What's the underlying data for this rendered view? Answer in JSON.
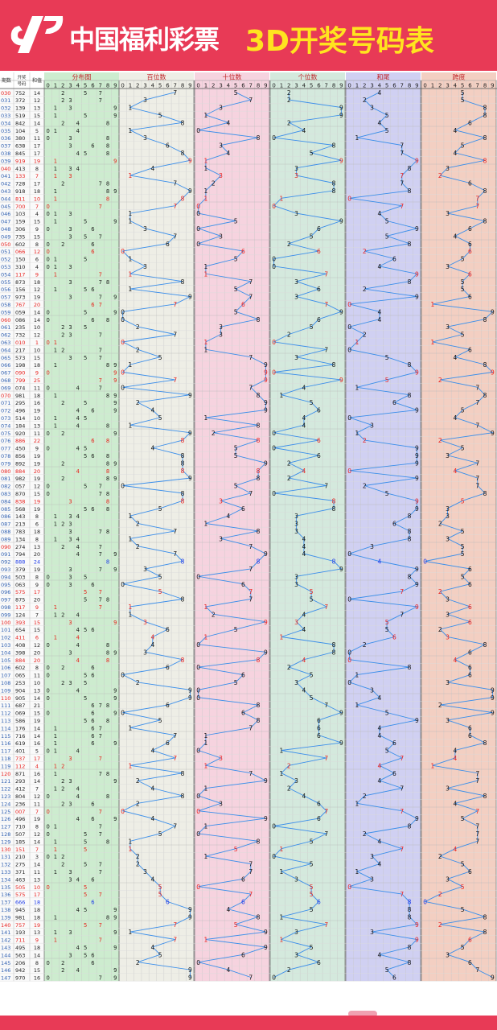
{
  "header": {
    "logo_text": "中国福利彩票",
    "title": "3D开奖号码表",
    "colors": {
      "brand": "#e83a56",
      "title": "#ffe41f"
    }
  },
  "column_headers": {
    "period": "期数",
    "draw": "开奖号码",
    "sum": "和值",
    "distribution": "分布图",
    "hundreds": "百位数",
    "tens": "十位数",
    "units": "个位数",
    "sum_tail": "和尾",
    "span": "跨度",
    "digits": [
      "0",
      "1",
      "2",
      "3",
      "4",
      "5",
      "6",
      "7",
      "8",
      "9"
    ]
  },
  "colors": {
    "distribution_bg": "#cdeccf",
    "hundreds_bg": "#eeeee6",
    "tens_bg": "#f6d3df",
    "units_bg": "#d4e9dd",
    "sum_tail_bg": "#d0d0f2",
    "span_bg": "#f3cfc2",
    "line": "#3a8eea",
    "red_number": "#e8201d",
    "blue_number": "#1d3ae8"
  },
  "chart_data": {
    "type": "table",
    "title": "3D开奖号码表",
    "rows": [
      {
        "period": "030",
        "draw": "752",
        "sum": "14",
        "sum_tail": "4",
        "span": "5"
      },
      {
        "period": "031",
        "draw": "372",
        "sum": "12",
        "sum_tail": "2",
        "span": "5"
      },
      {
        "period": "032",
        "draw": "139",
        "sum": "13",
        "sum_tail": "3",
        "span": "8"
      },
      {
        "period": "033",
        "draw": "519",
        "sum": "15",
        "sum_tail": "5",
        "span": "8"
      },
      {
        "period": "034",
        "draw": "842",
        "sum": "14",
        "sum_tail": "4",
        "span": "6"
      },
      {
        "period": "035",
        "draw": "104",
        "sum": "5",
        "sum_tail": "5",
        "span": "4"
      },
      {
        "period": "036",
        "draw": "380",
        "sum": "11",
        "sum_tail": "1",
        "span": "8"
      },
      {
        "period": "037",
        "draw": "638",
        "sum": "17",
        "sum_tail": "7",
        "span": "5"
      },
      {
        "period": "038",
        "draw": "845",
        "sum": "17",
        "sum_tail": "7",
        "span": "4"
      },
      {
        "period": "039",
        "draw": "919",
        "sum": "19",
        "sum_tail": "9",
        "span": "8"
      },
      {
        "period": "040",
        "draw": "413",
        "sum": "8",
        "sum_tail": "8",
        "span": "3"
      },
      {
        "period": "041",
        "draw": "133",
        "sum": "7",
        "sum_tail": "7",
        "span": "2"
      },
      {
        "period": "042",
        "draw": "728",
        "sum": "17",
        "sum_tail": "7",
        "span": "6"
      },
      {
        "period": "043",
        "draw": "918",
        "sum": "18",
        "sum_tail": "8",
        "span": "8"
      },
      {
        "period": "044",
        "draw": "811",
        "sum": "10",
        "sum_tail": "0",
        "span": "7"
      },
      {
        "period": "045",
        "draw": "700",
        "sum": "7",
        "sum_tail": "7",
        "span": "7"
      },
      {
        "period": "046",
        "draw": "103",
        "sum": "4",
        "sum_tail": "4",
        "span": "3"
      },
      {
        "period": "047",
        "draw": "159",
        "sum": "15",
        "sum_tail": "5",
        "span": "8"
      },
      {
        "period": "048",
        "draw": "306",
        "sum": "9",
        "sum_tail": "9",
        "span": "6"
      },
      {
        "period": "049",
        "draw": "735",
        "sum": "15",
        "sum_tail": "5",
        "span": "4"
      },
      {
        "period": "050",
        "draw": "602",
        "sum": "8",
        "sum_tail": "8",
        "span": "6"
      },
      {
        "period": "051",
        "draw": "066",
        "sum": "12",
        "sum_tail": "2",
        "span": "6"
      },
      {
        "period": "052",
        "draw": "150",
        "sum": "6",
        "sum_tail": "6",
        "span": "5"
      },
      {
        "period": "053",
        "draw": "310",
        "sum": "4",
        "sum_tail": "4",
        "span": "3"
      },
      {
        "period": "054",
        "draw": "117",
        "sum": "9",
        "sum_tail": "9",
        "span": "6"
      },
      {
        "period": "055",
        "draw": "873",
        "sum": "18",
        "sum_tail": "8",
        "span": "5"
      },
      {
        "period": "056",
        "draw": "156",
        "sum": "12",
        "sum_tail": "2",
        "span": "5"
      },
      {
        "period": "057",
        "draw": "973",
        "sum": "19",
        "sum_tail": "9",
        "span": "6"
      },
      {
        "period": "058",
        "draw": "767",
        "sum": "20",
        "sum_tail": "0",
        "span": "1"
      },
      {
        "period": "059",
        "draw": "059",
        "sum": "14",
        "sum_tail": "4",
        "span": "9"
      },
      {
        "period": "060",
        "draw": "086",
        "sum": "14",
        "sum_tail": "4",
        "span": "8"
      },
      {
        "period": "061",
        "draw": "235",
        "sum": "10",
        "sum_tail": "0",
        "span": "3"
      },
      {
        "period": "062",
        "draw": "732",
        "sum": "12",
        "sum_tail": "2",
        "span": "5"
      },
      {
        "period": "063",
        "draw": "010",
        "sum": "1",
        "sum_tail": "1",
        "span": "1"
      },
      {
        "period": "064",
        "draw": "217",
        "sum": "10",
        "sum_tail": "0",
        "span": "6"
      },
      {
        "period": "065",
        "draw": "573",
        "sum": "15",
        "sum_tail": "5",
        "span": "4"
      },
      {
        "period": "066",
        "draw": "198",
        "sum": "18",
        "sum_tail": "8",
        "span": "8"
      },
      {
        "period": "067",
        "draw": "090",
        "sum": "9",
        "sum_tail": "9",
        "span": "9"
      },
      {
        "period": "068",
        "draw": "799",
        "sum": "25",
        "sum_tail": "5",
        "span": "2"
      },
      {
        "period": "069",
        "draw": "074",
        "sum": "11",
        "sum_tail": "1",
        "span": "7"
      },
      {
        "period": "070",
        "draw": "981",
        "sum": "18",
        "sum_tail": "8",
        "span": "8"
      },
      {
        "period": "071",
        "draw": "295",
        "sum": "16",
        "sum_tail": "6",
        "span": "7"
      },
      {
        "period": "072",
        "draw": "496",
        "sum": "19",
        "sum_tail": "9",
        "span": "5"
      },
      {
        "period": "073",
        "draw": "514",
        "sum": "10",
        "sum_tail": "0",
        "span": "4"
      },
      {
        "period": "074",
        "draw": "184",
        "sum": "13",
        "sum_tail": "3",
        "span": "7"
      },
      {
        "period": "075",
        "draw": "920",
        "sum": "11",
        "sum_tail": "1",
        "span": "9"
      },
      {
        "period": "076",
        "draw": "886",
        "sum": "22",
        "sum_tail": "2",
        "span": "2"
      },
      {
        "period": "077",
        "draw": "450",
        "sum": "9",
        "sum_tail": "9",
        "span": "5"
      },
      {
        "period": "078",
        "draw": "856",
        "sum": "19",
        "sum_tail": "9",
        "span": "3"
      },
      {
        "period": "079",
        "draw": "892",
        "sum": "19",
        "sum_tail": "9",
        "span": "7"
      },
      {
        "period": "080",
        "draw": "884",
        "sum": "20",
        "sum_tail": "0",
        "span": "4"
      },
      {
        "period": "081",
        "draw": "982",
        "sum": "19",
        "sum_tail": "9",
        "span": "7"
      },
      {
        "period": "082",
        "draw": "057",
        "sum": "12",
        "sum_tail": "2",
        "span": "7"
      },
      {
        "period": "083",
        "draw": "870",
        "sum": "15",
        "sum_tail": "5",
        "span": "8"
      },
      {
        "period": "084",
        "draw": "838",
        "sum": "19",
        "sum_tail": "9",
        "span": "5"
      },
      {
        "period": "085",
        "draw": "568",
        "sum": "19",
        "sum_tail": "9",
        "span": "3"
      },
      {
        "period": "086",
        "draw": "143",
        "sum": "8",
        "sum_tail": "8",
        "span": "3"
      },
      {
        "period": "087",
        "draw": "213",
        "sum": "6",
        "sum_tail": "6",
        "span": "2"
      },
      {
        "period": "088",
        "draw": "783",
        "sum": "18",
        "sum_tail": "8",
        "span": "5"
      },
      {
        "period": "089",
        "draw": "134",
        "sum": "8",
        "sum_tail": "8",
        "span": "3"
      },
      {
        "period": "090",
        "draw": "274",
        "sum": "13",
        "sum_tail": "3",
        "span": "5"
      },
      {
        "period": "091",
        "draw": "794",
        "sum": "20",
        "sum_tail": "0",
        "span": "5"
      },
      {
        "period": "092",
        "draw": "888",
        "sum": "24",
        "sum_tail": "4",
        "span": "0"
      },
      {
        "period": "093",
        "draw": "379",
        "sum": "19",
        "sum_tail": "9",
        "span": "6"
      },
      {
        "period": "094",
        "draw": "503",
        "sum": "8",
        "sum_tail": "8",
        "span": "5"
      },
      {
        "period": "095",
        "draw": "063",
        "sum": "9",
        "sum_tail": "9",
        "span": "6"
      },
      {
        "period": "096",
        "draw": "575",
        "sum": "17",
        "sum_tail": "7",
        "span": "2"
      },
      {
        "period": "097",
        "draw": "875",
        "sum": "20",
        "sum_tail": "0",
        "span": "3"
      },
      {
        "period": "098",
        "draw": "117",
        "sum": "9",
        "sum_tail": "9",
        "span": "6"
      },
      {
        "period": "099",
        "draw": "124",
        "sum": "7",
        "sum_tail": "7",
        "span": "3"
      },
      {
        "period": "100",
        "draw": "393",
        "sum": "15",
        "sum_tail": "5",
        "span": "6"
      },
      {
        "period": "101",
        "draw": "654",
        "sum": "15",
        "sum_tail": "5",
        "span": "2"
      },
      {
        "period": "102",
        "draw": "411",
        "sum": "6",
        "sum_tail": "6",
        "span": "3"
      },
      {
        "period": "103",
        "draw": "408",
        "sum": "12",
        "sum_tail": "2",
        "span": "8"
      },
      {
        "period": "104",
        "draw": "398",
        "sum": "20",
        "sum_tail": "0",
        "span": "6"
      },
      {
        "period": "105",
        "draw": "884",
        "sum": "20",
        "sum_tail": "0",
        "span": "4"
      },
      {
        "period": "106",
        "draw": "602",
        "sum": "8",
        "sum_tail": "8",
        "span": "6"
      },
      {
        "period": "107",
        "draw": "065",
        "sum": "11",
        "sum_tail": "1",
        "span": "6"
      },
      {
        "period": "108",
        "draw": "253",
        "sum": "10",
        "sum_tail": "0",
        "span": "3"
      },
      {
        "period": "109",
        "draw": "904",
        "sum": "13",
        "sum_tail": "3",
        "span": "9"
      },
      {
        "period": "110",
        "draw": "905",
        "sum": "14",
        "sum_tail": "4",
        "span": "9"
      },
      {
        "period": "111",
        "draw": "687",
        "sum": "21",
        "sum_tail": "1",
        "span": "2"
      },
      {
        "period": "112",
        "draw": "069",
        "sum": "15",
        "sum_tail": "5",
        "span": "9"
      },
      {
        "period": "113",
        "draw": "586",
        "sum": "19",
        "sum_tail": "9",
        "span": "3"
      },
      {
        "period": "114",
        "draw": "176",
        "sum": "14",
        "sum_tail": "4",
        "span": "6"
      },
      {
        "period": "115",
        "draw": "716",
        "sum": "14",
        "sum_tail": "4",
        "span": "6"
      },
      {
        "period": "116",
        "draw": "619",
        "sum": "16",
        "sum_tail": "6",
        "span": "8"
      },
      {
        "period": "117",
        "draw": "401",
        "sum": "5",
        "sum_tail": "5",
        "span": "4"
      },
      {
        "period": "118",
        "draw": "737",
        "sum": "17",
        "sum_tail": "7",
        "span": "4"
      },
      {
        "period": "119",
        "draw": "112",
        "sum": "4",
        "sum_tail": "4",
        "span": "1"
      },
      {
        "period": "120",
        "draw": "871",
        "sum": "16",
        "sum_tail": "6",
        "span": "7"
      },
      {
        "period": "121",
        "draw": "293",
        "sum": "14",
        "sum_tail": "4",
        "span": "7"
      },
      {
        "period": "122",
        "draw": "412",
        "sum": "7",
        "sum_tail": "7",
        "span": "3"
      },
      {
        "period": "123",
        "draw": "804",
        "sum": "12",
        "sum_tail": "2",
        "span": "8"
      },
      {
        "period": "124",
        "draw": "236",
        "sum": "11",
        "sum_tail": "1",
        "span": "4"
      },
      {
        "period": "125",
        "draw": "007",
        "sum": "7",
        "sum_tail": "7",
        "span": "7"
      },
      {
        "period": "126",
        "draw": "496",
        "sum": "19",
        "sum_tail": "9",
        "span": "5"
      },
      {
        "period": "127",
        "draw": "710",
        "sum": "8",
        "sum_tail": "8",
        "span": "7"
      },
      {
        "period": "128",
        "draw": "507",
        "sum": "12",
        "sum_tail": "2",
        "span": "7"
      },
      {
        "period": "129",
        "draw": "185",
        "sum": "14",
        "sum_tail": "4",
        "span": "7"
      },
      {
        "period": "130",
        "draw": "151",
        "sum": "7",
        "sum_tail": "7",
        "span": "4"
      },
      {
        "period": "131",
        "draw": "210",
        "sum": "3",
        "sum_tail": "3",
        "span": "2"
      },
      {
        "period": "132",
        "draw": "275",
        "sum": "14",
        "sum_tail": "4",
        "span": "5"
      },
      {
        "period": "133",
        "draw": "371",
        "sum": "11",
        "sum_tail": "1",
        "span": "6"
      },
      {
        "period": "134",
        "draw": "463",
        "sum": "13",
        "sum_tail": "3",
        "span": "3"
      },
      {
        "period": "135",
        "draw": "505",
        "sum": "10",
        "sum_tail": "0",
        "span": "5"
      },
      {
        "period": "136",
        "draw": "575",
        "sum": "17",
        "sum_tail": "7",
        "span": "2"
      },
      {
        "period": "137",
        "draw": "666",
        "sum": "18",
        "sum_tail": "8",
        "span": "0"
      },
      {
        "period": "138",
        "draw": "945",
        "sum": "18",
        "sum_tail": "8",
        "span": "5"
      },
      {
        "period": "139",
        "draw": "981",
        "sum": "18",
        "sum_tail": "8",
        "span": "8"
      },
      {
        "period": "140",
        "draw": "757",
        "sum": "19",
        "sum_tail": "9",
        "span": "2"
      },
      {
        "period": "141",
        "draw": "193",
        "sum": "13",
        "sum_tail": "3",
        "span": "8"
      },
      {
        "period": "142",
        "draw": "711",
        "sum": "9",
        "sum_tail": "9",
        "span": "6"
      },
      {
        "period": "143",
        "draw": "495",
        "sum": "18",
        "sum_tail": "8",
        "span": "5"
      },
      {
        "period": "144",
        "draw": "563",
        "sum": "14",
        "sum_tail": "4",
        "span": "3"
      },
      {
        "period": "145",
        "draw": "206",
        "sum": "8",
        "sum_tail": "8",
        "span": "6"
      },
      {
        "period": "146",
        "draw": "942",
        "sum": "15",
        "sum_tail": "5",
        "span": "7"
      },
      {
        "period": "147",
        "draw": "970",
        "sum": "16",
        "sum_tail": "6",
        "span": "9"
      }
    ]
  }
}
